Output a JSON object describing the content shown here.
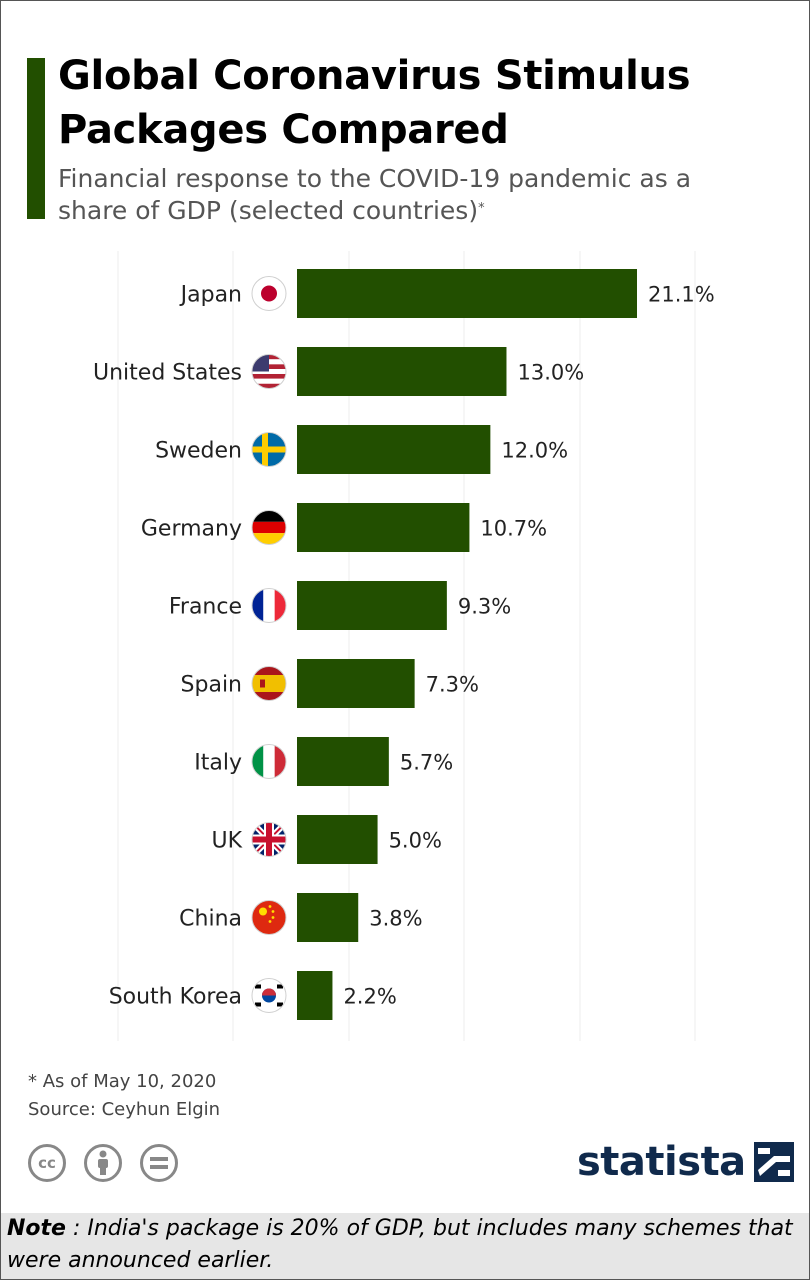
{
  "title": "Global Coronavirus Stimulus Packages Compared",
  "subtitle": "Financial response to the COVID-19 pandemic as a share of GDP (selected countries)",
  "subtitle_marker": "*",
  "footnote": "* As of May 10, 2020",
  "source": "Source: Ceyhun Elgin",
  "brand": "statista",
  "note": {
    "label": "Note",
    "text": " : India's package is 20% of GDP, but includes many schemes that were announced earlier."
  },
  "colors": {
    "bar": "#224f00",
    "accent": "#224f00",
    "brand": "#102a4c"
  },
  "icons": [
    "creative-commons-icon",
    "attribution-icon",
    "no-derivatives-icon"
  ],
  "chart_data": {
    "type": "bar",
    "orientation": "horizontal",
    "categories": [
      "Japan",
      "United States",
      "Sweden",
      "Germany",
      "France",
      "Spain",
      "Italy",
      "UK",
      "China",
      "South Korea"
    ],
    "values": [
      21.1,
      13.0,
      12.0,
      10.7,
      9.3,
      7.3,
      5.7,
      5.0,
      3.8,
      2.2
    ],
    "value_labels": [
      "21.1%",
      "13.0%",
      "12.0%",
      "10.7%",
      "9.3%",
      "7.3%",
      "5.7%",
      "5.0%",
      "3.8%",
      "2.2%"
    ],
    "flags": [
      "japan-flag-icon",
      "usa-flag-icon",
      "sweden-flag-icon",
      "germany-flag-icon",
      "france-flag-icon",
      "spain-flag-icon",
      "italy-flag-icon",
      "uk-flag-icon",
      "china-flag-icon",
      "south-korea-flag-icon"
    ],
    "xlim": [
      0,
      21.1
    ],
    "grid": true,
    "legend": "none"
  }
}
